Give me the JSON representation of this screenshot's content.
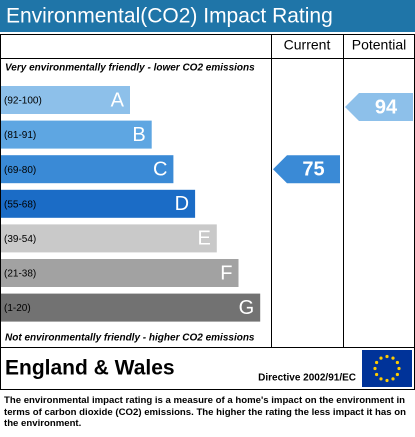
{
  "title": "Environmental(CO2) Impact Rating",
  "columns": {
    "current": "Current",
    "potential": "Potential"
  },
  "top_note": "Very environmentally friendly - lower CO2 emissions",
  "bottom_note": "Not environmentally friendly - higher CO2 emissions",
  "bands": [
    {
      "range": "(92-100)",
      "letter": "A",
      "color": "#8dc0ea"
    },
    {
      "range": "(81-91)",
      "letter": "B",
      "color": "#5ea6e2"
    },
    {
      "range": "(69-80)",
      "letter": "C",
      "color": "#3a8ad6"
    },
    {
      "range": "(55-68)",
      "letter": "D",
      "color": "#1b6cc6"
    },
    {
      "range": "(39-54)",
      "letter": "E",
      "color": "#c9c9c9"
    },
    {
      "range": "(21-38)",
      "letter": "F",
      "color": "#a2a2a2"
    },
    {
      "range": "(1-20)",
      "letter": "G",
      "color": "#727272"
    }
  ],
  "current": {
    "value": 75
  },
  "potential": {
    "value": 94
  },
  "region": "England & Wales",
  "directive": "Directive 2002/91/EC",
  "description": "The environmental impact rating is a measure of a home's impact on the environment in terms of carbon dioxide (CO2) emissions. The higher the rating the less impact it has on the environment."
}
